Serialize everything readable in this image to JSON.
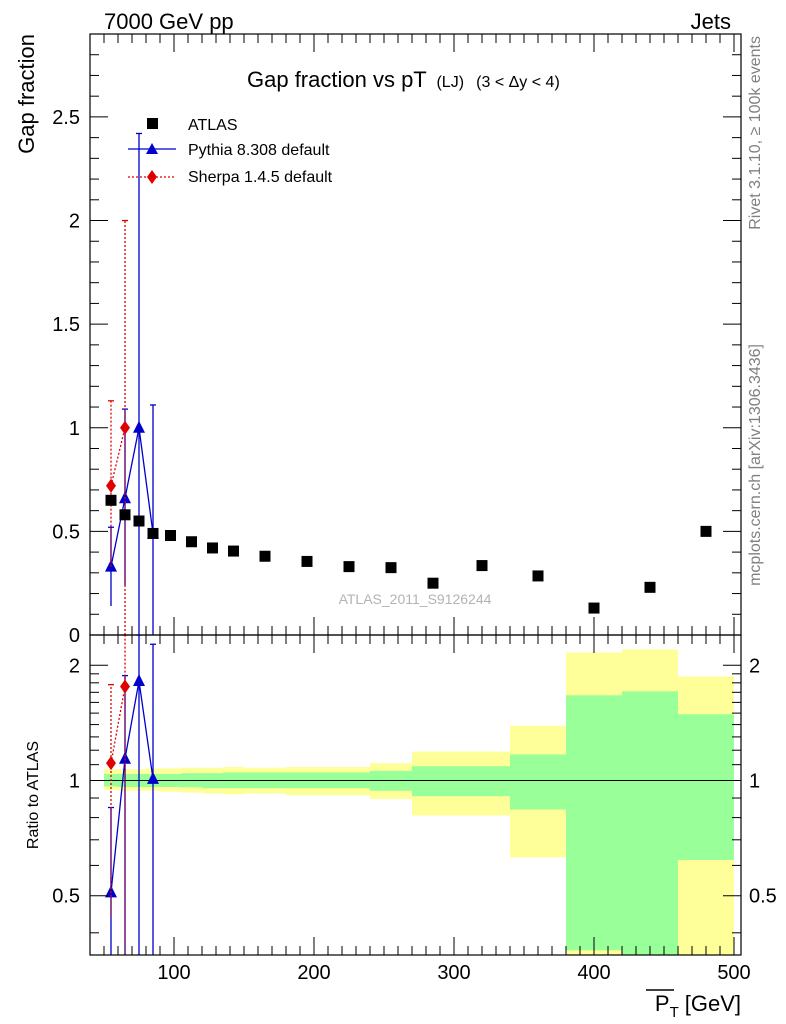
{
  "header": {
    "energy_label": "7000 GeV pp",
    "process_label": "Jets"
  },
  "side_labels": {
    "rivet": "Rivet 3.1.10, ≥ 100k events",
    "mcplots": "mcplots.cern.ch [arXiv:1306.3436]"
  },
  "chart_data": [
    {
      "type": "scatter",
      "title": "Gap fraction vs pT",
      "title_sub": "(LJ)",
      "title_range": "(3 < Δy < 4)",
      "ylabel": "Gap fraction",
      "xlabel_main": "P",
      "xlabel_sub": "T",
      "xlabel_unit": "[GeV]",
      "watermark": "ATLAS_2011_S9126244",
      "xlim": [
        40,
        505
      ],
      "ylim": [
        0,
        2.9
      ],
      "yticks": [
        {
          "value": 0,
          "label": "0"
        },
        {
          "value": 0.5,
          "label": "0.5"
        },
        {
          "value": 1,
          "label": "1"
        },
        {
          "value": 1.5,
          "label": "1.5"
        },
        {
          "value": 2,
          "label": "2"
        },
        {
          "value": 2.5,
          "label": "2.5"
        }
      ],
      "legend": [
        {
          "name": "ATLAS",
          "marker": "square",
          "color": "#000000"
        },
        {
          "name": "Pythia 8.308 default",
          "marker": "triangle",
          "color": "#0000cc"
        },
        {
          "name": "Sherpa 1.4.5 default",
          "marker": "diamond",
          "color": "#e00000"
        }
      ],
      "series": [
        {
          "name": "ATLAS",
          "color": "#000000",
          "points": [
            {
              "x": 55,
              "y": 0.65
            },
            {
              "x": 65,
              "y": 0.58
            },
            {
              "x": 75,
              "y": 0.55
            },
            {
              "x": 85,
              "y": 0.49
            },
            {
              "x": 97.5,
              "y": 0.48
            },
            {
              "x": 112.5,
              "y": 0.45
            },
            {
              "x": 127.5,
              "y": 0.42
            },
            {
              "x": 142.5,
              "y": 0.405
            },
            {
              "x": 165,
              "y": 0.38
            },
            {
              "x": 195,
              "y": 0.355
            },
            {
              "x": 225,
              "y": 0.33
            },
            {
              "x": 255,
              "y": 0.325
            },
            {
              "x": 285,
              "y": 0.25
            },
            {
              "x": 320,
              "y": 0.335
            },
            {
              "x": 360,
              "y": 0.285
            },
            {
              "x": 400,
              "y": 0.13
            },
            {
              "x": 440,
              "y": 0.23
            },
            {
              "x": 480,
              "y": 0.5
            }
          ]
        },
        {
          "name": "Pythia 8.308 default",
          "color": "#0000cc",
          "points": [
            {
              "x": 55,
              "y": 0.33,
              "lo": 0.14,
              "hi": 0.52
            },
            {
              "x": 65,
              "y": 0.66,
              "lo": 0.24,
              "hi": 1.09
            },
            {
              "x": 75,
              "y": 1.0,
              "lo": 0.0,
              "hi": 2.42
            },
            {
              "x": 85,
              "y": 0.49,
              "lo": 0.0,
              "hi": 1.11
            }
          ]
        },
        {
          "name": "Sherpa 1.4.5 default",
          "color": "#e00000",
          "points": [
            {
              "x": 55,
              "y": 0.72,
              "lo": 0.33,
              "hi": 1.13
            },
            {
              "x": 65,
              "y": 1.0,
              "lo": 0.0,
              "hi": 2.0
            }
          ]
        }
      ]
    },
    {
      "type": "scatter",
      "ylabel": "Ratio to ATLAS",
      "log_y": true,
      "xlim": [
        40,
        505
      ],
      "ylim": [
        0.35,
        2.4
      ],
      "yticks": [
        {
          "value": 0.5,
          "label": "0.5"
        },
        {
          "value": 1,
          "label": "1"
        },
        {
          "value": 2,
          "label": "2"
        }
      ],
      "xticks": [
        {
          "value": 100,
          "label": "100"
        },
        {
          "value": 200,
          "label": "200"
        },
        {
          "value": 300,
          "label": "300"
        },
        {
          "value": 400,
          "label": "400"
        },
        {
          "value": 500,
          "label": "500"
        }
      ],
      "bands": [
        {
          "x0": 50,
          "x1": 60,
          "y1_lo": 0.965,
          "y1_hi": 1.04,
          "y2_lo": 0.945,
          "y2_hi": 1.07
        },
        {
          "x0": 60,
          "x1": 70,
          "y1_lo": 0.962,
          "y1_hi": 1.04,
          "y2_lo": 0.94,
          "y2_hi": 1.07
        },
        {
          "x0": 70,
          "x1": 80,
          "y1_lo": 0.962,
          "y1_hi": 1.04,
          "y2_lo": 0.94,
          "y2_hi": 1.07
        },
        {
          "x0": 80,
          "x1": 90,
          "y1_lo": 0.962,
          "y1_hi": 1.04,
          "y2_lo": 0.94,
          "y2_hi": 1.075
        },
        {
          "x0": 90,
          "x1": 105,
          "y1_lo": 0.962,
          "y1_hi": 1.04,
          "y2_lo": 0.935,
          "y2_hi": 1.075
        },
        {
          "x0": 105,
          "x1": 120,
          "y1_lo": 0.96,
          "y1_hi": 1.045,
          "y2_lo": 0.93,
          "y2_hi": 1.08
        },
        {
          "x0": 120,
          "x1": 135,
          "y1_lo": 0.955,
          "y1_hi": 1.045,
          "y2_lo": 0.925,
          "y2_hi": 1.08
        },
        {
          "x0": 135,
          "x1": 150,
          "y1_lo": 0.955,
          "y1_hi": 1.05,
          "y2_lo": 0.92,
          "y2_hi": 1.085
        },
        {
          "x0": 150,
          "x1": 180,
          "y1_lo": 0.955,
          "y1_hi": 1.05,
          "y2_lo": 0.925,
          "y2_hi": 1.08
        },
        {
          "x0": 180,
          "x1": 210,
          "y1_lo": 0.955,
          "y1_hi": 1.05,
          "y2_lo": 0.915,
          "y2_hi": 1.085
        },
        {
          "x0": 210,
          "x1": 240,
          "y1_lo": 0.955,
          "y1_hi": 1.05,
          "y2_lo": 0.915,
          "y2_hi": 1.085
        },
        {
          "x0": 240,
          "x1": 270,
          "y1_lo": 0.94,
          "y1_hi": 1.06,
          "y2_lo": 0.895,
          "y2_hi": 1.11
        },
        {
          "x0": 270,
          "x1": 340,
          "y1_lo": 0.91,
          "y1_hi": 1.09,
          "y2_lo": 0.81,
          "y2_hi": 1.19
        },
        {
          "x0": 340,
          "x1": 380,
          "y1_lo": 0.84,
          "y1_hi": 1.17,
          "y2_lo": 0.63,
          "y2_hi": 1.39
        },
        {
          "x0": 380,
          "x1": 420,
          "y1_lo": 0.36,
          "y1_hi": 1.67,
          "y2_lo": 0.35,
          "y2_hi": 2.16
        },
        {
          "x0": 420,
          "x1": 460,
          "y1_lo": 0.35,
          "y1_hi": 1.71,
          "y2_lo": 0.35,
          "y2_hi": 2.2
        },
        {
          "x0": 460,
          "x1": 500,
          "y1_lo": 0.62,
          "y1_hi": 1.49,
          "y2_lo": 0.35,
          "y2_hi": 1.87
        }
      ],
      "series": [
        {
          "name": "Pythia 8.308 default",
          "color": "#0000cc",
          "points": [
            {
              "x": 55,
              "y": 0.51,
              "lo": 0.3,
              "hi": 0.85
            },
            {
              "x": 65,
              "y": 1.14,
              "lo": 0.3,
              "hi": 1.88
            },
            {
              "x": 75,
              "y": 1.82,
              "lo": 0.3,
              "hi": 2.4
            },
            {
              "x": 85,
              "y": 1.01,
              "lo": 0.3,
              "hi": 2.27
            }
          ]
        },
        {
          "name": "Sherpa 1.4.5 default",
          "color": "#e00000",
          "points": [
            {
              "x": 55,
              "y": 1.11,
              "lo": 0.44,
              "hi": 1.78
            },
            {
              "x": 65,
              "y": 1.76,
              "lo": 0.3,
              "hi": 2.4
            }
          ]
        }
      ]
    }
  ]
}
